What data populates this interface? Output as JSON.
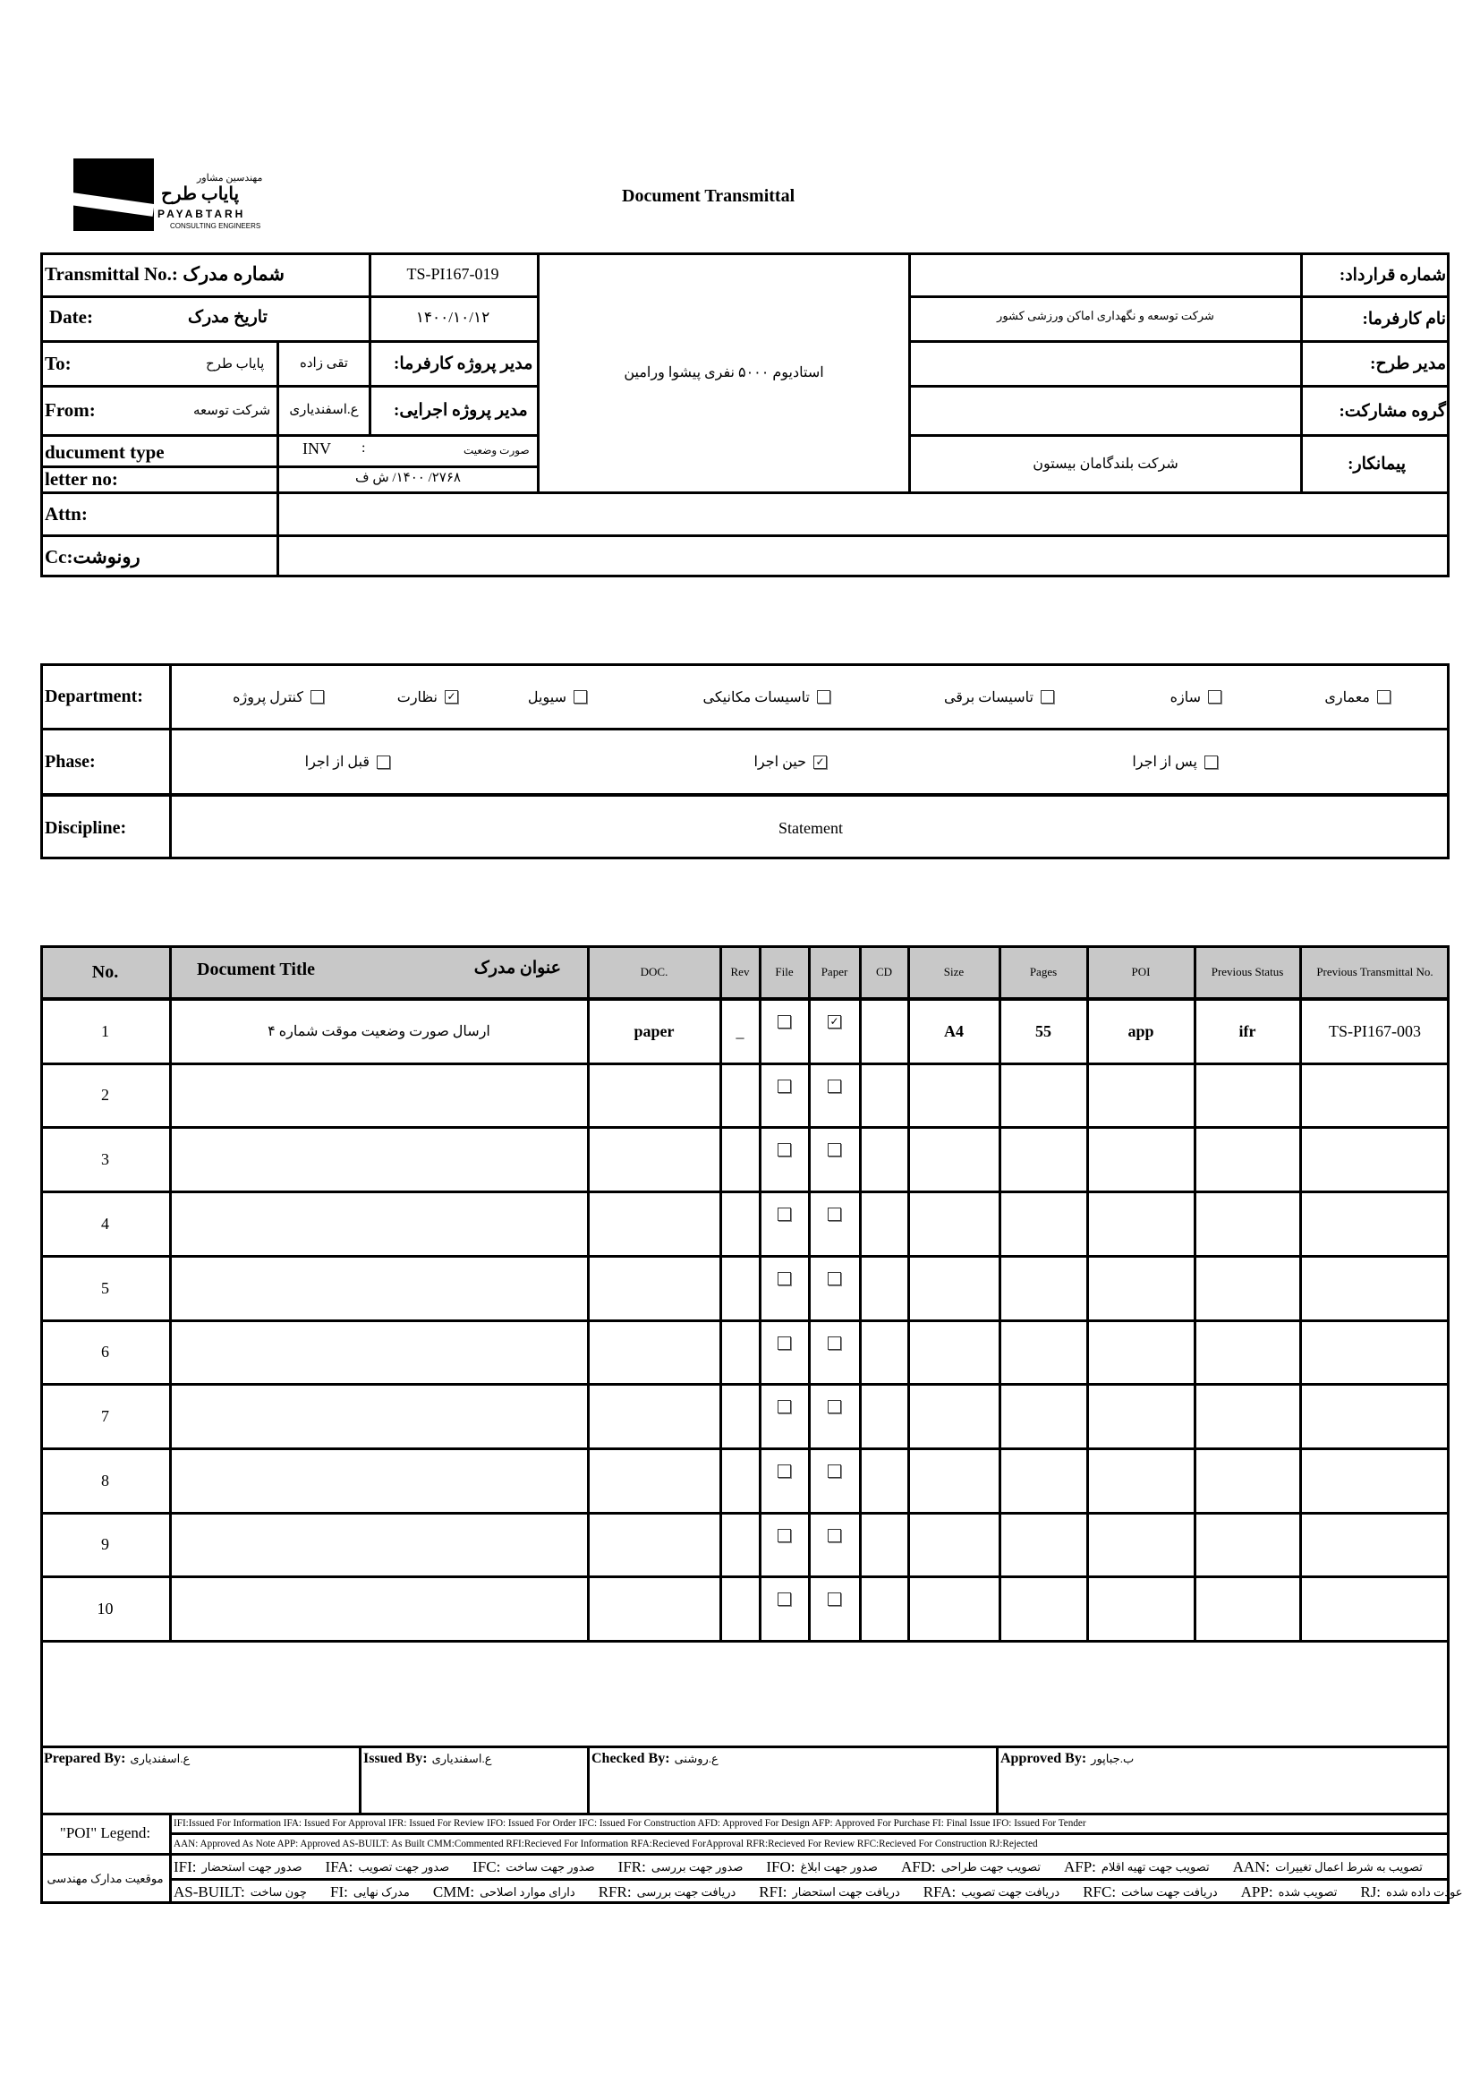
{
  "header": {
    "logo_fa_small": "مهندسین مشاور",
    "logo_fa": "پایاب طرح",
    "logo_en": "PAYABTARH",
    "logo_sub": "CONSULTING ENGINEERS",
    "title": "Document Transmittal"
  },
  "info": {
    "transmittal_label": "Transmittal No.:",
    "transmittal_label_fa": "شماره مدرک",
    "transmittal_no": "TS-PI167-019",
    "date_label": "Date:",
    "date_label_fa": "تاریخ  مدرک",
    "date": "۱۴۰۰/۱۰/۱۲",
    "to_label": "To:",
    "to_company": "پایاب طرح",
    "to_person": "تقی زاده",
    "client_pm_label": "مدیر پروژه کارفرما:",
    "from_label": "From:",
    "from_company": "شرکت توسعه",
    "from_person": "ع.اسفندیاری",
    "exec_pm_label": "مدیر پروژه اجرایی:",
    "doctype_label": "ducument type",
    "doctype_code": "INV",
    "doctype_sep": ":",
    "doctype_fa": "صورت وضعیت",
    "letter_label": "letter no:",
    "letter_no": "۲۷۶۸/ ۱۴۰۰/ ش ف",
    "project": "استادیوم ۵۰۰۰ نفری پیشوا ورامین",
    "contract_label": "شماره قرارداد:",
    "contract": "",
    "employer_label": "نام کارفرما:",
    "employer": "شرکت توسعه و نگهداری اماکن ورزشی کشور",
    "plan_manager_label": "مدیر طرح:",
    "plan_manager": "",
    "partnership_label": "گروه مشارکت:",
    "partnership": "",
    "contractor_label": "پیمانکار:",
    "contractor": "شرکت بلندگامان بیستون",
    "attn_label": "Attn:",
    "attn": "",
    "cc_label": "Cc:رونوشت",
    "cc": ""
  },
  "classification": {
    "department_label": "Department:",
    "departments": [
      {
        "label": "معماری",
        "checked": false
      },
      {
        "label": "سازه",
        "checked": false
      },
      {
        "label": "تاسیسات برقی",
        "checked": false
      },
      {
        "label": "تاسیسات مکانیکی",
        "checked": false
      },
      {
        "label": "سیویل",
        "checked": false
      },
      {
        "label": "نظارت",
        "checked": true
      },
      {
        "label": "کنترل پروژه",
        "checked": false
      }
    ],
    "phase_label": "Phase:",
    "phases": [
      {
        "label": "پس از اجرا",
        "checked": false
      },
      {
        "label": "حین اجرا",
        "checked": true
      },
      {
        "label": "قبل از اجرا",
        "checked": false
      }
    ],
    "discipline_label": "Discipline:",
    "discipline": "Statement"
  },
  "documents": {
    "headers": {
      "no": "No.",
      "title": "Document Title",
      "title_fa": "عنوان مدرک",
      "doc": "DOC.",
      "rev": "Rev",
      "file": "File",
      "paper": "Paper",
      "cd": "CD",
      "size": "Size",
      "pages": "Pages",
      "poi": "POI",
      "prev_status": "Previous Status",
      "prev_transmittal": "Previous Transmittal No."
    },
    "rows": [
      {
        "no": "1",
        "title": "ارسال صورت وضعیت موقت شماره ۴",
        "doc": "paper",
        "rev": "_",
        "file": false,
        "paper": true,
        "cd": "",
        "size": "A4",
        "pages": "55",
        "poi": "app",
        "prev_status": "ifr",
        "prev_transmittal": "TS-PI167-003"
      },
      {
        "no": "2",
        "title": "",
        "doc": "",
        "rev": "",
        "file": false,
        "paper": false,
        "cd": "",
        "size": "",
        "pages": "",
        "poi": "",
        "prev_status": "",
        "prev_transmittal": ""
      },
      {
        "no": "3",
        "title": "",
        "doc": "",
        "rev": "",
        "file": false,
        "paper": false,
        "cd": "",
        "size": "",
        "pages": "",
        "poi": "",
        "prev_status": "",
        "prev_transmittal": ""
      },
      {
        "no": "4",
        "title": "",
        "doc": "",
        "rev": "",
        "file": false,
        "paper": false,
        "cd": "",
        "size": "",
        "pages": "",
        "poi": "",
        "prev_status": "",
        "prev_transmittal": ""
      },
      {
        "no": "5",
        "title": "",
        "doc": "",
        "rev": "",
        "file": false,
        "paper": false,
        "cd": "",
        "size": "",
        "pages": "",
        "poi": "",
        "prev_status": "",
        "prev_transmittal": ""
      },
      {
        "no": "6",
        "title": "",
        "doc": "",
        "rev": "",
        "file": false,
        "paper": false,
        "cd": "",
        "size": "",
        "pages": "",
        "poi": "",
        "prev_status": "",
        "prev_transmittal": ""
      },
      {
        "no": "7",
        "title": "",
        "doc": "",
        "rev": "",
        "file": false,
        "paper": false,
        "cd": "",
        "size": "",
        "pages": "",
        "poi": "",
        "prev_status": "",
        "prev_transmittal": ""
      },
      {
        "no": "8",
        "title": "",
        "doc": "",
        "rev": "",
        "file": false,
        "paper": false,
        "cd": "",
        "size": "",
        "pages": "",
        "poi": "",
        "prev_status": "",
        "prev_transmittal": ""
      },
      {
        "no": "9",
        "title": "",
        "doc": "",
        "rev": "",
        "file": false,
        "paper": false,
        "cd": "",
        "size": "",
        "pages": "",
        "poi": "",
        "prev_status": "",
        "prev_transmittal": ""
      },
      {
        "no": "10",
        "title": "",
        "doc": "",
        "rev": "",
        "file": false,
        "paper": false,
        "cd": "",
        "size": "",
        "pages": "",
        "poi": "",
        "prev_status": "",
        "prev_transmittal": ""
      }
    ]
  },
  "signatures": [
    {
      "label": "Prepared By:",
      "name": "ع.اسفندیاری"
    },
    {
      "label": "Issued By:",
      "name": "ع.اسفندیاری"
    },
    {
      "label": "Checked By:",
      "name": "ع.روشنی"
    },
    {
      "label": "Approved By:",
      "name": "ب.جباپور"
    }
  ],
  "legend": {
    "poi_label": "\"POI\" Legend:",
    "line1": "IFI:Issued For Information  IFA: Issued For Approval  IFR: Issued For Review   IFO: Issued For Order  IFC: Issued For Construction AFD: Approved For Design AFP: Approved For Purchase  FI: Final Issue  IFO: Issued For Tender",
    "line2": "AAN: Approved As Note  APP: Approved  AS-BUILT: As Built CMM:Commented  RFI:Recieved For Information  RFA:Recieved ForApproval  RFR:Recieved For Review  RFC:Recieved For Construction  RJ:Rejected",
    "fa_label": "موقعیت مدارک مهندسی",
    "fa_line1": [
      {
        "code": "IFI:",
        "fa": "صدور جهت استحضار"
      },
      {
        "code": "IFA:",
        "fa": "صدور جهت تصویب"
      },
      {
        "code": "IFC:",
        "fa": "صدور جهت  ساخت"
      },
      {
        "code": "IFR:",
        "fa": "صدور جهت بررسی"
      },
      {
        "code": "IFO:",
        "fa": "صدور جهت ابلاغ"
      },
      {
        "code": "AFD:",
        "fa": "تصویب جهت طراحی"
      },
      {
        "code": "AFP:",
        "fa": "تصویب جهت تهیه اقلام"
      },
      {
        "code": "AAN:",
        "fa": "تصویب به شرط اعمال تغییرات"
      }
    ],
    "fa_line2": [
      {
        "code": "AS-BUILT:",
        "fa": "چون ساخت"
      },
      {
        "code": "FI:",
        "fa": "مدرک نهایی"
      },
      {
        "code": "CMM:",
        "fa": "دارای موارد اصلاحی"
      },
      {
        "code": "RFR:",
        "fa": "دریافت جهت بررسی"
      },
      {
        "code": "RFI:",
        "fa": "دریافت جهت استحضار"
      },
      {
        "code": "RFA:",
        "fa": "دریافت جهت تصویب"
      },
      {
        "code": "RFC:",
        "fa": "دریافت جهت ساخت"
      },
      {
        "code": "APP:",
        "fa": "تصویب شده"
      },
      {
        "code": "RJ:",
        "fa": "عودت داده شده"
      }
    ]
  }
}
